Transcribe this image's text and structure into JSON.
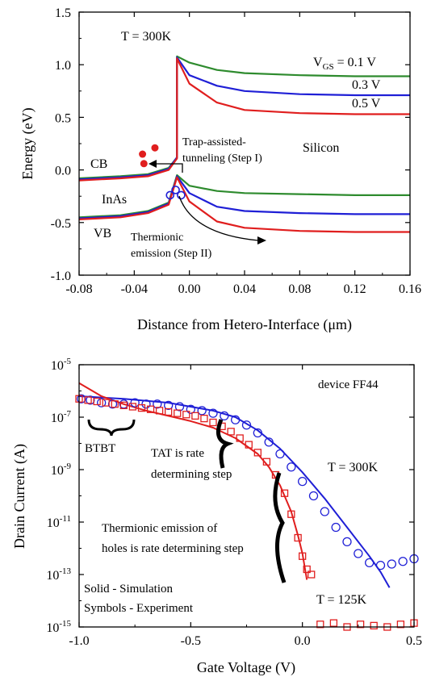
{
  "chart_data": [
    {
      "type": "line",
      "xlabel": "Distance from Hetero-Interface (μm)",
      "ylabel": "Energy (eV)",
      "xlim": [
        -0.08,
        0.16
      ],
      "ylim": [
        -1.0,
        1.5
      ],
      "x_ticks": [
        "-0.08",
        "-0.04",
        "0.00",
        "0.04",
        "0.08",
        "0.12",
        "0.16"
      ],
      "y_ticks": [
        "1.5",
        "1.0",
        "0.5",
        "0.0",
        "-0.5",
        "-1.0"
      ],
      "colors": {
        "vgs_0_1": "#2e8b2e",
        "vgs_0_3": "#1f1fd6",
        "vgs_0_5": "#e01e1e"
      },
      "annotations": {
        "temperature": "T = 300K",
        "vgs_prefix": "V",
        "vgs_sub": "GS",
        "vgs_first": " = 0.1 V",
        "vgs_second": "0.3 V",
        "vgs_third": "0.5 V",
        "cb": "CB",
        "vb": "VB",
        "inas": "InAs",
        "silicon": "Silicon",
        "tat_line1": "Trap-assisted-",
        "tat_line2": "tunneling (Step I)",
        "te_line1": "Thermionic",
        "te_line2": "emission (Step II)"
      },
      "series": [
        {
          "key": "vgs_0_1",
          "label": "0.1 V",
          "cb": [
            [
              -0.08,
              -0.08
            ],
            [
              -0.05,
              -0.06
            ],
            [
              -0.03,
              -0.04
            ],
            [
              -0.015,
              0.02
            ],
            [
              -0.009,
              0.12
            ],
            [
              -0.009,
              1.08
            ],
            [
              0.0,
              1.02
            ],
            [
              0.02,
              0.95
            ],
            [
              0.04,
              0.92
            ],
            [
              0.08,
              0.9
            ],
            [
              0.12,
              0.89
            ],
            [
              0.16,
              0.89
            ]
          ],
          "vb": [
            [
              -0.08,
              -0.45
            ],
            [
              -0.05,
              -0.43
            ],
            [
              -0.03,
              -0.39
            ],
            [
              -0.015,
              -0.31
            ],
            [
              -0.009,
              -0.05
            ],
            [
              0.0,
              -0.15
            ],
            [
              0.02,
              -0.2
            ],
            [
              0.04,
              -0.22
            ],
            [
              0.08,
              -0.23
            ],
            [
              0.12,
              -0.24
            ],
            [
              0.16,
              -0.24
            ]
          ]
        },
        {
          "key": "vgs_0_3",
          "label": "0.3 V",
          "cb": [
            [
              -0.08,
              -0.09
            ],
            [
              -0.05,
              -0.07
            ],
            [
              -0.03,
              -0.05
            ],
            [
              -0.015,
              0.01
            ],
            [
              -0.009,
              0.12
            ],
            [
              -0.009,
              1.07
            ],
            [
              0.0,
              0.9
            ],
            [
              0.02,
              0.8
            ],
            [
              0.04,
              0.75
            ],
            [
              0.08,
              0.72
            ],
            [
              0.12,
              0.71
            ],
            [
              0.16,
              0.71
            ]
          ],
          "vb": [
            [
              -0.08,
              -0.46
            ],
            [
              -0.05,
              -0.44
            ],
            [
              -0.03,
              -0.4
            ],
            [
              -0.015,
              -0.32
            ],
            [
              -0.009,
              -0.06
            ],
            [
              0.0,
              -0.22
            ],
            [
              0.02,
              -0.35
            ],
            [
              0.04,
              -0.39
            ],
            [
              0.08,
              -0.41
            ],
            [
              0.12,
              -0.42
            ],
            [
              0.16,
              -0.42
            ]
          ]
        },
        {
          "key": "vgs_0_5",
          "label": "0.5 V",
          "cb": [
            [
              -0.08,
              -0.1
            ],
            [
              -0.05,
              -0.08
            ],
            [
              -0.03,
              -0.06
            ],
            [
              -0.015,
              0.0
            ],
            [
              -0.009,
              0.11
            ],
            [
              -0.009,
              1.06
            ],
            [
              0.0,
              0.82
            ],
            [
              0.02,
              0.64
            ],
            [
              0.04,
              0.57
            ],
            [
              0.08,
              0.54
            ],
            [
              0.12,
              0.53
            ],
            [
              0.16,
              0.53
            ]
          ],
          "vb": [
            [
              -0.08,
              -0.47
            ],
            [
              -0.05,
              -0.45
            ],
            [
              -0.03,
              -0.41
            ],
            [
              -0.015,
              -0.33
            ],
            [
              -0.009,
              -0.07
            ],
            [
              0.0,
              -0.3
            ],
            [
              0.02,
              -0.49
            ],
            [
              0.04,
              -0.55
            ],
            [
              0.08,
              -0.58
            ],
            [
              0.12,
              -0.59
            ],
            [
              0.16,
              -0.59
            ]
          ]
        }
      ],
      "traps": [
        [
          -0.034,
          0.15
        ],
        [
          -0.033,
          0.06
        ],
        [
          -0.025,
          0.21
        ]
      ],
      "holes": [
        [
          -0.014,
          -0.24
        ],
        [
          -0.01,
          -0.19
        ],
        [
          -0.006,
          -0.24
        ]
      ]
    },
    {
      "type": "line",
      "xlabel": "Gate Voltage (V)",
      "ylabel": "Drain Current (A)",
      "xlim": [
        -1.0,
        0.5
      ],
      "ylim_log10": [
        -15,
        -5
      ],
      "log_y": true,
      "x_ticks": [
        "-1.0",
        "-0.5",
        "0.0",
        "0.5"
      ],
      "y_ticks": [
        {
          "base": "10",
          "exp": "-5"
        },
        {
          "base": "10",
          "exp": "-7"
        },
        {
          "base": "10",
          "exp": "-9"
        },
        {
          "base": "10",
          "exp": "-11"
        },
        {
          "base": "10",
          "exp": "-13"
        },
        {
          "base": "10",
          "exp": "-15"
        }
      ],
      "colors": {
        "t300": "#1f1fd6",
        "t125": "#e01e1e"
      },
      "annotations": {
        "device": "device FF44",
        "btbt": "BTBT",
        "tat_line1": "TAT is rate",
        "tat_line2": "determining step",
        "te_line1": "Thermionic emission of",
        "te_line2": "holes is rate determining step",
        "legend_solid": "Solid - Simulation",
        "legend_symbols": "Symbols - Experiment",
        "t300": "T = 300K",
        "t125": "T = 125K"
      },
      "series": [
        {
          "key": "t300_sim",
          "label": "T = 300K simulation",
          "log_points": [
            [
              -1.0,
              -6.2
            ],
            [
              -0.8,
              -6.3
            ],
            [
              -0.6,
              -6.45
            ],
            [
              -0.4,
              -6.75
            ],
            [
              -0.3,
              -7.0
            ],
            [
              -0.2,
              -7.5
            ],
            [
              -0.1,
              -8.2
            ],
            [
              0.0,
              -9.1
            ],
            [
              0.1,
              -10.1
            ],
            [
              0.2,
              -11.2
            ],
            [
              0.3,
              -12.3
            ],
            [
              0.35,
              -12.9
            ],
            [
              0.39,
              -13.5
            ]
          ]
        },
        {
          "key": "t300_exp",
          "label": "T = 300K experiment",
          "log_points": [
            [
              -0.99,
              -6.3
            ],
            [
              -0.95,
              -6.35
            ],
            [
              -0.9,
              -6.45
            ],
            [
              -0.85,
              -6.5
            ],
            [
              -0.8,
              -6.5
            ],
            [
              -0.75,
              -6.45
            ],
            [
              -0.7,
              -6.5
            ],
            [
              -0.65,
              -6.5
            ],
            [
              -0.6,
              -6.55
            ],
            [
              -0.55,
              -6.6
            ],
            [
              -0.5,
              -6.7
            ],
            [
              -0.45,
              -6.75
            ],
            [
              -0.4,
              -6.85
            ],
            [
              -0.35,
              -6.95
            ],
            [
              -0.3,
              -7.1
            ],
            [
              -0.25,
              -7.3
            ],
            [
              -0.2,
              -7.6
            ],
            [
              -0.15,
              -7.95
            ],
            [
              -0.1,
              -8.4
            ],
            [
              -0.05,
              -8.9
            ],
            [
              0.0,
              -9.45
            ],
            [
              0.05,
              -10.0
            ],
            [
              0.1,
              -10.6
            ],
            [
              0.15,
              -11.2
            ],
            [
              0.2,
              -11.75
            ],
            [
              0.25,
              -12.2
            ],
            [
              0.3,
              -12.55
            ],
            [
              0.35,
              -12.65
            ],
            [
              0.4,
              -12.6
            ],
            [
              0.45,
              -12.5
            ],
            [
              0.5,
              -12.4
            ]
          ]
        },
        {
          "key": "t125_sim",
          "label": "T = 125K simulation",
          "log_points": [
            [
              -1.0,
              -5.7
            ],
            [
              -0.9,
              -6.2
            ],
            [
              -0.8,
              -6.5
            ],
            [
              -0.7,
              -6.75
            ],
            [
              -0.6,
              -6.95
            ],
            [
              -0.5,
              -7.15
            ],
            [
              -0.4,
              -7.4
            ],
            [
              -0.3,
              -7.8
            ],
            [
              -0.2,
              -8.4
            ],
            [
              -0.15,
              -8.9
            ],
            [
              -0.1,
              -9.6
            ],
            [
              -0.05,
              -10.6
            ],
            [
              -0.02,
              -11.5
            ],
            [
              0.0,
              -12.2
            ],
            [
              0.02,
              -13.2
            ]
          ]
        },
        {
          "key": "t125_exp",
          "label": "T = 125K experiment",
          "log_points": [
            [
              -1.0,
              -6.3
            ],
            [
              -0.96,
              -6.35
            ],
            [
              -0.92,
              -6.4
            ],
            [
              -0.88,
              -6.45
            ],
            [
              -0.84,
              -6.5
            ],
            [
              -0.8,
              -6.55
            ],
            [
              -0.76,
              -6.6
            ],
            [
              -0.72,
              -6.65
            ],
            [
              -0.68,
              -6.7
            ],
            [
              -0.64,
              -6.75
            ],
            [
              -0.6,
              -6.8
            ],
            [
              -0.56,
              -6.85
            ],
            [
              -0.52,
              -6.9
            ],
            [
              -0.48,
              -6.95
            ],
            [
              -0.44,
              -7.05
            ],
            [
              -0.4,
              -7.2
            ],
            [
              -0.36,
              -7.35
            ],
            [
              -0.32,
              -7.55
            ],
            [
              -0.28,
              -7.8
            ],
            [
              -0.24,
              -8.05
            ],
            [
              -0.2,
              -8.35
            ],
            [
              -0.16,
              -8.7
            ],
            [
              -0.12,
              -9.2
            ],
            [
              -0.08,
              -9.9
            ],
            [
              -0.05,
              -10.7
            ],
            [
              -0.02,
              -11.6
            ],
            [
              0.0,
              -12.3
            ],
            [
              0.02,
              -12.8
            ],
            [
              0.04,
              -13.0
            ],
            [
              0.08,
              -14.9
            ],
            [
              0.14,
              -14.85
            ],
            [
              0.2,
              -15.0
            ],
            [
              0.26,
              -14.9
            ],
            [
              0.32,
              -14.95
            ],
            [
              0.38,
              -15.0
            ],
            [
              0.44,
              -14.9
            ],
            [
              0.5,
              -14.85
            ]
          ]
        }
      ]
    }
  ]
}
